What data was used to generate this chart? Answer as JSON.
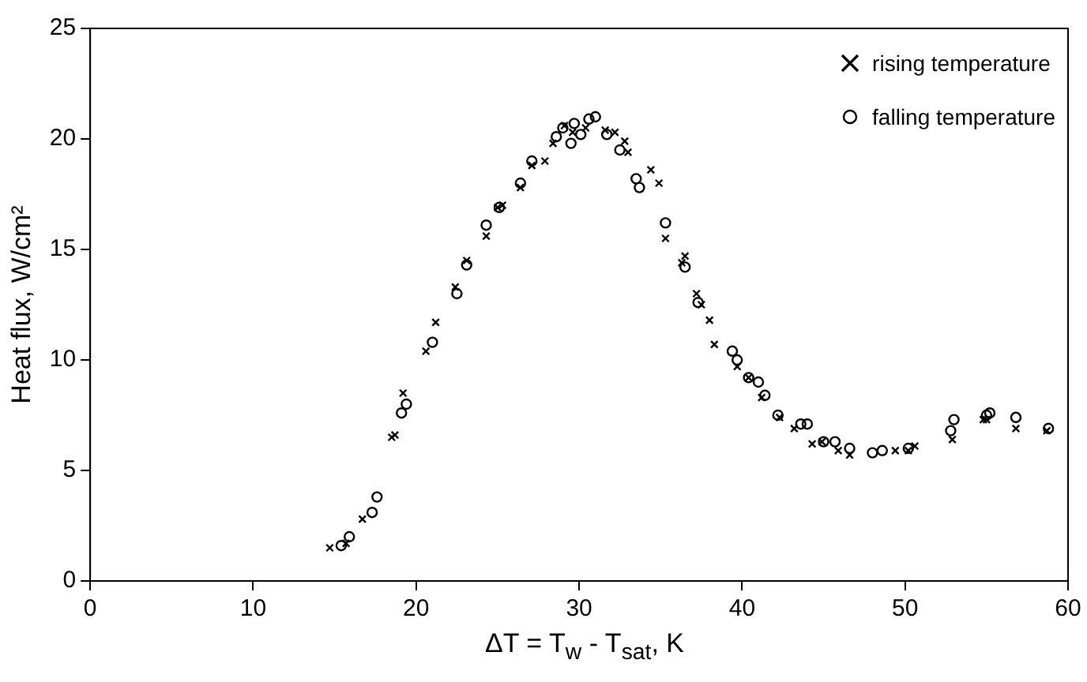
{
  "chart_data": {
    "type": "scatter",
    "xlabel": "ΔT = T$_{w}$ - T$_{sat}$, K",
    "ylabel": "Heat flux, W/cm²",
    "xlim": [
      0,
      60
    ],
    "xticks": [
      0,
      10,
      20,
      30,
      40,
      50,
      60
    ],
    "ylim": [
      0,
      25
    ],
    "yticks": [
      0,
      5,
      10,
      15,
      20,
      25
    ],
    "grid": false,
    "legend": "top right",
    "series": [
      {
        "name": "rising temperature",
        "color": "#000000",
        "marker": "cross",
        "x": [
          14.7,
          15.7,
          16.7,
          18.5,
          18.7,
          19.2,
          20.6,
          21.2,
          22.4,
          23.1,
          24.3,
          25,
          25.3,
          26.4,
          27.1,
          27.9,
          28.4,
          29.1,
          29.6,
          30.4,
          31.6,
          32.2,
          32.8,
          33,
          34.4,
          34.9,
          35.3,
          36.3,
          36.5,
          37.2,
          37.5,
          38,
          38.3,
          39.7,
          40.4,
          41.2,
          42.3,
          43.2,
          44.3,
          44.9,
          45.9,
          46.6,
          49.4,
          50.2,
          50.6,
          52.9,
          54.8,
          55,
          56.8,
          58.7
        ],
        "values": [
          1.5,
          1.7,
          2.8,
          6.5,
          6.6,
          8.5,
          10.4,
          11.7,
          13.3,
          14.5,
          15.6,
          16.9,
          17,
          17.8,
          18.8,
          19,
          19.8,
          20.6,
          20.3,
          20.5,
          20.4,
          20.3,
          19.9,
          19.4,
          18.6,
          18,
          15.5,
          14.4,
          14.7,
          13,
          12.5,
          11.8,
          10.7,
          9.7,
          9.2,
          8.3,
          7.4,
          6.9,
          6.2,
          6.3,
          5.9,
          5.7,
          5.9,
          5.9,
          6.1,
          6.4,
          7.3,
          7.3,
          6.9,
          6.8
        ]
      },
      {
        "name": "falling temperature",
        "color": "#000000",
        "marker": "circle",
        "x": [
          15.4,
          15.9,
          17.3,
          17.6,
          19.1,
          19.4,
          21,
          22.5,
          23.1,
          24.3,
          25.1,
          26.4,
          27.1,
          28.6,
          29,
          29.5,
          29.7,
          30.1,
          30.6,
          31,
          31.7,
          32.5,
          33.5,
          33.7,
          35.3,
          36.5,
          37.3,
          39.4,
          39.7,
          40.4,
          41,
          41.4,
          42.2,
          43.6,
          44,
          45,
          45.7,
          46.6,
          48,
          48.6,
          50.2,
          52.8,
          53,
          55,
          55.2,
          56.8,
          58.8
        ],
        "values": [
          1.6,
          2,
          3.1,
          3.8,
          7.6,
          8,
          10.8,
          13,
          14.3,
          16.1,
          16.9,
          18,
          19,
          20.1,
          20.5,
          19.8,
          20.7,
          20.2,
          20.9,
          21,
          20.2,
          19.5,
          18.2,
          17.8,
          16.2,
          14.2,
          12.6,
          10.4,
          10,
          9.2,
          9,
          8.4,
          7.5,
          7.1,
          7.1,
          6.3,
          6.3,
          6,
          5.8,
          5.9,
          6,
          6.8,
          7.3,
          7.5,
          7.6,
          7.4,
          6.9
        ]
      }
    ]
  }
}
